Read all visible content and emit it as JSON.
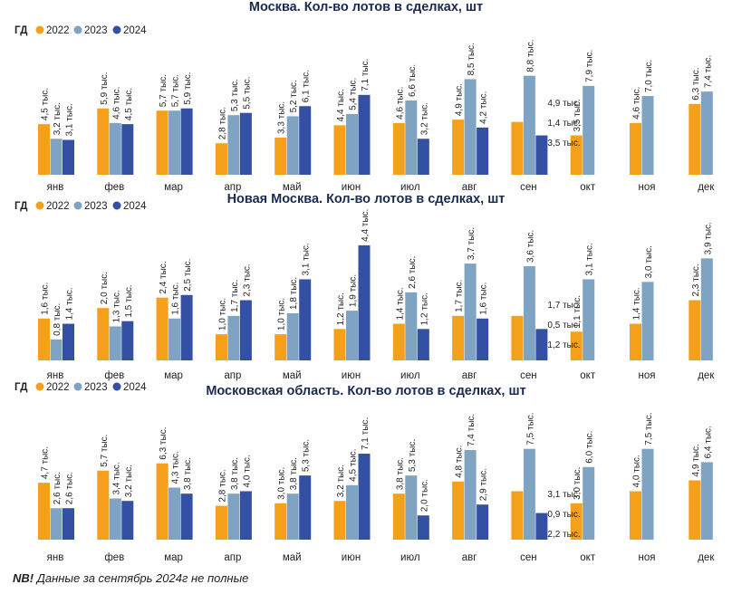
{
  "colors": {
    "c2022": "#F5A01A",
    "c2023": "#7FA3C2",
    "c2024": "#3350A4",
    "text": "#1f1f1f",
    "title": "#1a2a4f"
  },
  "chart_data": [
    {
      "type": "bar",
      "title": "Москва. Кол-во лотов в сделках, шт",
      "legend": {
        "label": "ГД",
        "entries": [
          "2022",
          "2023",
          "2024"
        ]
      },
      "categories": [
        "янв",
        "фев",
        "мар",
        "апр",
        "май",
        "июн",
        "июл",
        "авг",
        "сен",
        "окт",
        "ноя",
        "дек"
      ],
      "unit": "тыс.",
      "ylim": [
        0,
        9.5
      ],
      "series": [
        {
          "name": "2022",
          "values": [
            4.5,
            5.9,
            5.7,
            2.8,
            3.3,
            4.4,
            4.6,
            4.9,
            4.7,
            3.5,
            4.6,
            6.3
          ]
        },
        {
          "name": "2023",
          "values": [
            3.2,
            4.6,
            5.7,
            5.3,
            5.2,
            5.4,
            6.6,
            8.5,
            8.8,
            7.9,
            7.0,
            7.4
          ]
        },
        {
          "name": "2024",
          "values": [
            3.1,
            4.5,
            5.9,
            5.5,
            6.1,
            7.1,
            3.2,
            4.2,
            3.5,
            null,
            null,
            null
          ]
        }
      ],
      "extra_labels": [
        {
          "category": "сен",
          "text": "4,9 тыс."
        },
        {
          "category": "сен",
          "text": "1,4 тыс."
        },
        {
          "category": "сен",
          "text": "3,5 тыс."
        }
      ]
    },
    {
      "type": "bar",
      "title": "Новая Москва. Кол-во лотов в сделках, шт",
      "legend": {
        "label": "ГД",
        "entries": [
          "2022",
          "2023",
          "2024"
        ]
      },
      "categories": [
        "янв",
        "фев",
        "мар",
        "апр",
        "май",
        "июн",
        "июл",
        "авг",
        "сен",
        "окт",
        "ноя",
        "дек"
      ],
      "unit": "тыс.",
      "ylim": [
        0,
        4.5
      ],
      "series": [
        {
          "name": "2022",
          "values": [
            1.6,
            2.0,
            2.4,
            1.0,
            1.0,
            1.2,
            1.4,
            1.7,
            1.7,
            1.1,
            1.4,
            2.3
          ]
        },
        {
          "name": "2023",
          "values": [
            0.8,
            1.3,
            1.6,
            1.7,
            1.8,
            1.9,
            2.6,
            3.7,
            3.6,
            3.1,
            3.0,
            3.9
          ]
        },
        {
          "name": "2024",
          "values": [
            1.4,
            1.5,
            2.5,
            2.3,
            3.1,
            4.4,
            1.2,
            1.6,
            1.2,
            null,
            null,
            null
          ]
        }
      ],
      "extra_labels": [
        {
          "category": "сен",
          "text": "1,7 тыс."
        },
        {
          "category": "сен",
          "text": "0,5 тыс."
        },
        {
          "category": "сен",
          "text": "1,2 тыс."
        }
      ]
    },
    {
      "type": "bar",
      "title": "Московская область. Кол-во лотов в сделках, шт",
      "legend": {
        "label": "ГД",
        "entries": [
          "2022",
          "2023",
          "2024"
        ]
      },
      "categories": [
        "янв",
        "фев",
        "мар",
        "апр",
        "май",
        "июн",
        "июл",
        "авг",
        "сен",
        "окт",
        "ноя",
        "дек"
      ],
      "unit": "тыс.",
      "ylim": [
        0,
        8.0
      ],
      "series": [
        {
          "name": "2022",
          "values": [
            4.7,
            5.7,
            6.3,
            2.8,
            3.0,
            3.2,
            3.8,
            4.8,
            4.0,
            3.0,
            4.0,
            4.9
          ]
        },
        {
          "name": "2023",
          "values": [
            2.6,
            3.4,
            4.3,
            3.8,
            3.8,
            4.5,
            5.3,
            7.4,
            7.5,
            6.0,
            7.5,
            6.4
          ]
        },
        {
          "name": "2024",
          "values": [
            2.6,
            3.2,
            3.8,
            4.0,
            5.3,
            7.1,
            2.0,
            2.9,
            2.2,
            null,
            null,
            null
          ]
        }
      ],
      "extra_labels": [
        {
          "category": "сен",
          "text": "3,1 тыс."
        },
        {
          "category": "сен",
          "text": "0,9 тыс."
        },
        {
          "category": "сен",
          "text": "2,2 тыс."
        }
      ]
    }
  ],
  "footer_note": {
    "bold": "NB!",
    "text": " Данные за сентябрь 2024г не полные"
  }
}
